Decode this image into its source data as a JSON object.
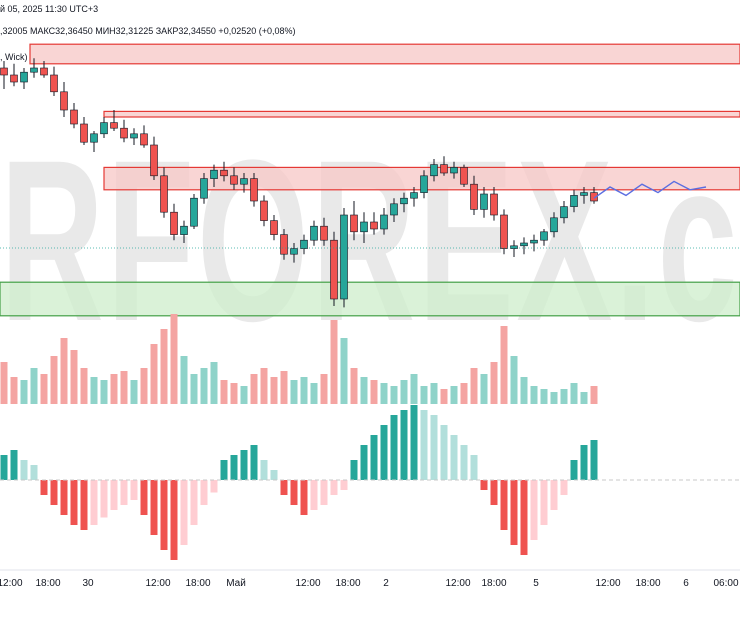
{
  "header": {
    "datetime": "й 05, 2025 11:30 UTC+3",
    "ohlc": ",32005  МАКС32,36450  МИН32,31225  ЗАКР32,34550  +0,02520 (+0,08%)",
    "indicator": ", Wick)"
  },
  "watermark": "RFOREX.c",
  "colors": {
    "up": "#26a69a",
    "down": "#ef5350",
    "vol_up": "#8fd3c9",
    "vol_down": "#f4a4a2",
    "zone_red": "#f7c7c6",
    "zone_green": "#cdeecb",
    "projection": "#5b6ee1"
  },
  "chart_data": {
    "type": "candlestick",
    "x_ticks": [
      "12:00",
      "18:00",
      "30",
      "12:00",
      "18:00",
      "Май",
      "12:00",
      "18:00",
      "2",
      "12:00",
      "18:00",
      "5",
      "12:00",
      "18:00",
      "6",
      "06:00"
    ],
    "candles": [
      [
        32.05,
        32.1,
        31.9,
        32.0
      ],
      [
        32.0,
        32.08,
        31.92,
        31.95
      ],
      [
        31.95,
        32.05,
        31.9,
        32.02
      ],
      [
        32.02,
        32.12,
        31.98,
        32.05
      ],
      [
        32.05,
        32.1,
        31.98,
        32.0
      ],
      [
        32.0,
        32.06,
        31.85,
        31.88
      ],
      [
        31.88,
        31.95,
        31.7,
        31.75
      ],
      [
        31.75,
        31.8,
        31.62,
        31.65
      ],
      [
        31.65,
        31.7,
        31.5,
        31.52
      ],
      [
        31.52,
        31.6,
        31.45,
        31.58
      ],
      [
        31.58,
        31.7,
        31.55,
        31.66
      ],
      [
        31.66,
        31.75,
        31.6,
        31.62
      ],
      [
        31.62,
        31.68,
        31.52,
        31.55
      ],
      [
        31.55,
        31.62,
        31.5,
        31.58
      ],
      [
        31.58,
        31.64,
        31.48,
        31.5
      ],
      [
        31.5,
        31.56,
        31.25,
        31.28
      ],
      [
        31.28,
        31.34,
        30.98,
        31.02
      ],
      [
        31.02,
        31.08,
        30.82,
        30.86
      ],
      [
        30.86,
        30.96,
        30.8,
        30.92
      ],
      [
        30.92,
        31.15,
        30.9,
        31.12
      ],
      [
        31.12,
        31.3,
        31.08,
        31.26
      ],
      [
        31.26,
        31.36,
        31.2,
        31.32
      ],
      [
        31.32,
        31.38,
        31.24,
        31.28
      ],
      [
        31.28,
        31.34,
        31.18,
        31.22
      ],
      [
        31.22,
        31.3,
        31.16,
        31.26
      ],
      [
        31.26,
        31.3,
        31.06,
        31.1
      ],
      [
        31.1,
        31.14,
        30.92,
        30.96
      ],
      [
        30.96,
        31.0,
        30.82,
        30.86
      ],
      [
        30.86,
        30.9,
        30.68,
        30.72
      ],
      [
        30.72,
        30.8,
        30.66,
        30.76
      ],
      [
        30.76,
        30.86,
        30.72,
        30.82
      ],
      [
        30.82,
        30.96,
        30.78,
        30.92
      ],
      [
        30.92,
        30.98,
        30.78,
        30.82
      ],
      [
        30.82,
        30.88,
        30.35,
        30.4
      ],
      [
        30.4,
        31.05,
        30.34,
        31.0
      ],
      [
        31.0,
        31.1,
        30.82,
        30.88
      ],
      [
        30.88,
        31.02,
        30.8,
        30.95
      ],
      [
        30.95,
        31.02,
        30.86,
        30.9
      ],
      [
        30.9,
        31.05,
        30.86,
        31.0
      ],
      [
        31.0,
        31.12,
        30.95,
        31.08
      ],
      [
        31.08,
        31.16,
        31.02,
        31.12
      ],
      [
        31.12,
        31.2,
        31.06,
        31.16
      ],
      [
        31.16,
        31.32,
        31.12,
        31.28
      ],
      [
        31.28,
        31.4,
        31.24,
        31.36
      ],
      [
        31.36,
        31.42,
        31.28,
        31.3
      ],
      [
        31.3,
        31.38,
        31.26,
        31.34
      ],
      [
        31.34,
        31.36,
        31.2,
        31.22
      ],
      [
        31.22,
        31.28,
        31.0,
        31.04
      ],
      [
        31.04,
        31.2,
        30.98,
        31.15
      ],
      [
        31.15,
        31.2,
        30.96,
        31.0
      ],
      [
        31.0,
        31.04,
        30.72,
        30.76
      ],
      [
        30.76,
        30.82,
        30.7,
        30.78
      ],
      [
        30.78,
        30.84,
        30.72,
        30.8
      ],
      [
        30.8,
        30.86,
        30.74,
        30.82
      ],
      [
        30.82,
        30.9,
        30.78,
        30.88
      ],
      [
        30.88,
        31.02,
        30.84,
        30.98
      ],
      [
        30.98,
        31.1,
        30.94,
        31.06
      ],
      [
        31.06,
        31.18,
        31.02,
        31.14
      ],
      [
        31.14,
        31.2,
        31.08,
        31.16
      ],
      [
        31.16,
        31.2,
        31.08,
        31.1
      ]
    ],
    "volume": [
      14,
      9,
      8,
      12,
      10,
      16,
      22,
      18,
      12,
      9,
      8,
      10,
      11,
      8,
      12,
      20,
      25,
      30,
      16,
      10,
      12,
      14,
      8,
      7,
      6,
      10,
      12,
      9,
      11,
      8,
      9,
      7,
      10,
      28,
      22,
      12,
      9,
      8,
      7,
      6,
      8,
      10,
      6,
      7,
      5,
      6,
      7,
      12,
      10,
      14,
      26,
      16,
      9,
      6,
      5,
      4,
      5,
      7,
      4,
      6
    ],
    "histogram": [
      10,
      12,
      8,
      6,
      -6,
      -10,
      -14,
      -18,
      -20,
      -18,
      -15,
      -12,
      -10,
      -8,
      -14,
      -22,
      -28,
      -32,
      -26,
      -18,
      -10,
      -5,
      8,
      10,
      12,
      14,
      8,
      4,
      -6,
      -10,
      -14,
      -12,
      -10,
      -6,
      -4,
      8,
      14,
      18,
      22,
      26,
      28,
      30,
      28,
      26,
      22,
      18,
      14,
      10,
      -4,
      -10,
      -20,
      -26,
      -30,
      -24,
      -18,
      -12,
      -6,
      8,
      14,
      16
    ],
    "zones": [
      {
        "type": "resistance",
        "top": 32.22,
        "bottom": 32.08
      },
      {
        "type": "resistance",
        "top": 31.74,
        "bottom": 31.7
      },
      {
        "type": "resistance",
        "top": 31.34,
        "bottom": 31.18
      },
      {
        "type": "support",
        "top": 30.52,
        "bottom": 30.28
      }
    ],
    "projection": [
      31.12,
      31.2,
      31.14,
      31.22,
      31.16,
      31.24,
      31.18,
      31.2
    ],
    "ylim": [
      30.25,
      32.25
    ]
  }
}
